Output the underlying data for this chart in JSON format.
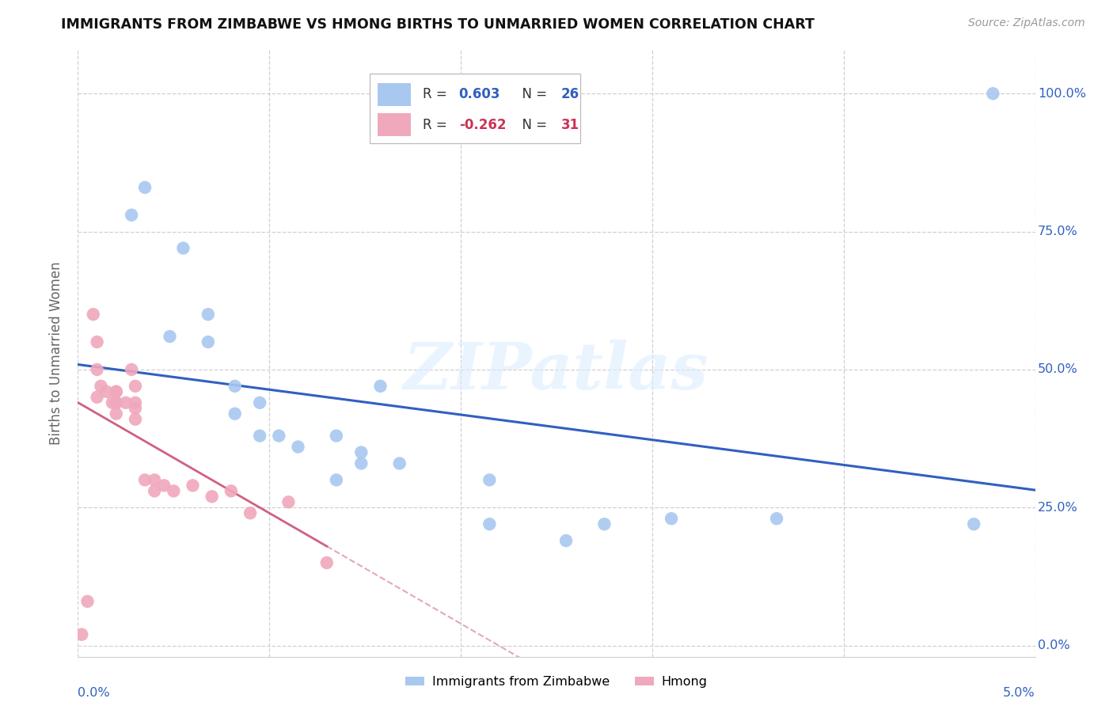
{
  "title": "IMMIGRANTS FROM ZIMBABWE VS HMONG BIRTHS TO UNMARRIED WOMEN CORRELATION CHART",
  "source": "Source: ZipAtlas.com",
  "ylabel": "Births to Unmarried Women",
  "yticks_labels": [
    "0.0%",
    "25.0%",
    "50.0%",
    "75.0%",
    "100.0%"
  ],
  "ytick_vals": [
    0.0,
    0.25,
    0.5,
    0.75,
    1.0
  ],
  "xlim": [
    0.0,
    0.05
  ],
  "ylim": [
    -0.02,
    1.08
  ],
  "watermark": "ZIPatlas",
  "blue_color": "#a8c8f0",
  "pink_color": "#f0a8bc",
  "blue_line_color": "#3060c0",
  "pink_line_color": "#d06080",
  "grid_color": "#d0d0d0",
  "background_color": "#ffffff",
  "blue_x": [
    0.0035,
    0.0028,
    0.0048,
    0.0055,
    0.0068,
    0.0068,
    0.0082,
    0.0082,
    0.0095,
    0.0095,
    0.0105,
    0.0115,
    0.0135,
    0.0135,
    0.0148,
    0.0148,
    0.0158,
    0.0168,
    0.0215,
    0.0215,
    0.0255,
    0.0275,
    0.031,
    0.0365,
    0.0468,
    0.0478
  ],
  "blue_y": [
    0.83,
    0.78,
    0.56,
    0.72,
    0.6,
    0.55,
    0.47,
    0.42,
    0.44,
    0.38,
    0.38,
    0.36,
    0.3,
    0.38,
    0.33,
    0.35,
    0.47,
    0.33,
    0.3,
    0.22,
    0.19,
    0.22,
    0.23,
    0.23,
    0.22,
    1.0
  ],
  "pink_x": [
    0.0002,
    0.0005,
    0.0008,
    0.001,
    0.001,
    0.001,
    0.0012,
    0.0015,
    0.0018,
    0.002,
    0.002,
    0.002,
    0.002,
    0.002,
    0.0025,
    0.0028,
    0.003,
    0.003,
    0.003,
    0.003,
    0.0035,
    0.004,
    0.004,
    0.0045,
    0.005,
    0.006,
    0.007,
    0.008,
    0.009,
    0.011,
    0.013
  ],
  "pink_y": [
    0.02,
    0.08,
    0.6,
    0.55,
    0.5,
    0.45,
    0.47,
    0.46,
    0.44,
    0.46,
    0.44,
    0.42,
    0.46,
    0.44,
    0.44,
    0.5,
    0.47,
    0.44,
    0.43,
    0.41,
    0.3,
    0.3,
    0.28,
    0.29,
    0.28,
    0.29,
    0.27,
    0.28,
    0.24,
    0.26,
    0.15
  ]
}
